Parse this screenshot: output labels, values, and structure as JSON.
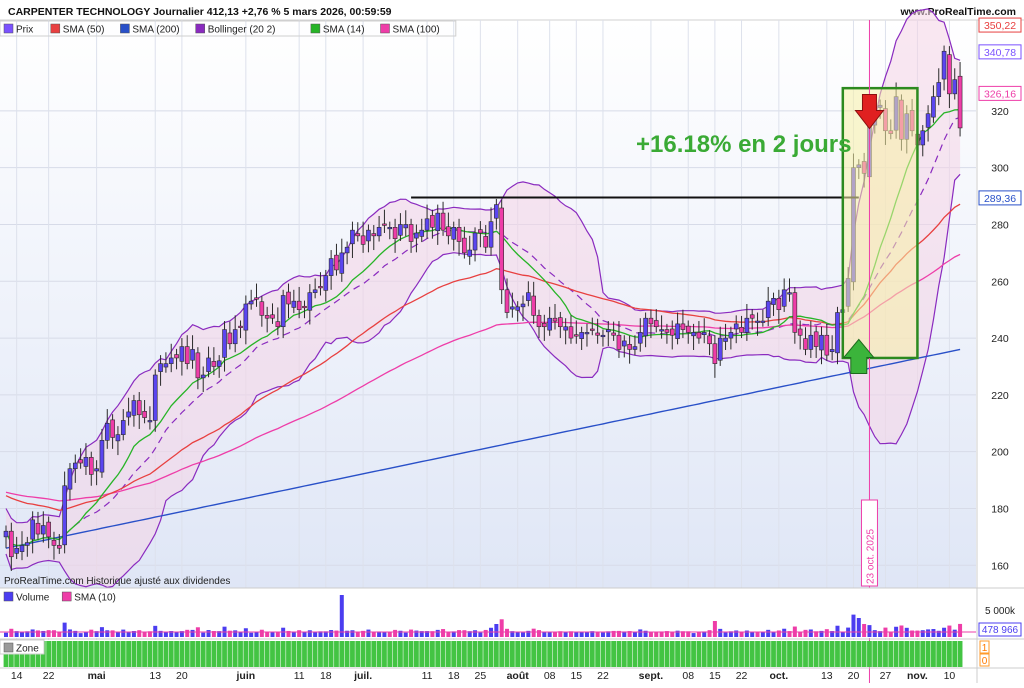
{
  "header": {
    "title": "CARPENTER TECHNOLOGY Journalier 412,13 +2,76 % 5 mars 2026, 00:59:59",
    "watermark": "www.ProRealTime.com"
  },
  "legend": [
    {
      "label": "Prix",
      "color": "#7b52ff"
    },
    {
      "label": "SMA (50)",
      "color": "#e84040"
    },
    {
      "label": "SMA (200)",
      "color": "#2950c8"
    },
    {
      "label": "Bollinger (20 2)",
      "color": "#8a2bbf"
    },
    {
      "label": "SMA (14)",
      "color": "#27b427"
    },
    {
      "label": "SMA (100)",
      "color": "#ee3da8"
    }
  ],
  "source_note": "ProRealTime.com  Historique ajusté aux dividendes",
  "annotation": {
    "text": "+16.18% en 2 jours",
    "color": "#3aaa35"
  },
  "vline_label": "23 oct. 2025",
  "price_tags": [
    {
      "value": "350,22",
      "color": "#e84040"
    },
    {
      "value": "340,78",
      "color": "#7b52ff"
    },
    {
      "value": "326,16",
      "color": "#ee3da8"
    },
    {
      "value": "289,36",
      "color": "#2950c8"
    }
  ],
  "volume_panel": {
    "legend": [
      {
        "label": "Volume",
        "color": "#4b3df0"
      },
      {
        "label": "SMA (10)",
        "color": "#ee3da8"
      }
    ],
    "axis_label": "5 000k",
    "tag": "478 966"
  },
  "zone_panel": {
    "label": "Zone",
    "tick_top": "1",
    "tick_bottom": "0"
  },
  "chart_data": {
    "type": "candlestick",
    "title": "CARPENTER TECHNOLOGY Journalier 412,13 +2,76 % 5 mars 2026, 00:59:59",
    "y_axis": {
      "ylim": [
        152,
        352
      ],
      "ticks": [
        160,
        180,
        200,
        220,
        240,
        260,
        280,
        300,
        320
      ]
    },
    "x_tick_labels": [
      "14",
      "22",
      "mai",
      "13",
      "20",
      "juin",
      "11",
      "18",
      "juil.",
      "11",
      "18",
      "25",
      "août",
      "08",
      "15",
      "22",
      "sept.",
      "08",
      "15",
      "22",
      "oct.",
      "13",
      "20",
      "27",
      "nov.",
      "10"
    ],
    "x_tick_bar_index": [
      2,
      8,
      17,
      28,
      33,
      45,
      55,
      60,
      67,
      79,
      84,
      89,
      96,
      102,
      107,
      112,
      121,
      128,
      133,
      138,
      145,
      154,
      159,
      165,
      171,
      177
    ],
    "close": [
      172,
      163,
      166,
      167,
      168,
      176,
      171,
      174,
      170,
      167,
      166,
      188,
      194,
      196,
      196,
      198,
      192,
      194,
      204,
      210,
      205,
      206,
      211,
      214,
      218,
      213,
      212,
      211,
      227,
      231,
      231,
      233,
      233,
      237,
      231,
      236,
      226,
      227,
      233,
      230,
      232,
      243,
      238,
      243,
      244,
      252,
      253,
      254,
      248,
      247,
      247,
      244,
      255,
      252,
      253,
      250,
      251,
      256,
      257,
      258,
      262,
      268,
      264,
      270,
      272,
      278,
      276,
      273,
      278,
      276,
      279,
      280,
      279,
      275,
      280,
      280,
      274,
      277,
      278,
      282,
      279,
      284,
      278,
      276,
      279,
      274,
      270,
      271,
      277,
      277,
      272,
      281,
      287,
      257,
      249,
      251,
      251,
      252,
      256,
      248,
      244,
      244,
      247,
      246,
      244,
      244,
      240,
      241,
      242,
      242,
      243,
      241,
      241,
      243,
      241,
      236,
      239,
      236,
      237,
      242,
      247,
      245,
      244,
      243,
      242,
      241,
      245,
      243,
      242,
      242,
      240,
      242,
      238,
      231,
      240,
      240,
      242,
      245,
      242,
      247,
      247,
      246,
      246,
      253,
      254,
      250,
      257,
      256,
      242,
      241,
      236,
      241,
      237,
      241,
      234,
      236,
      249,
      250,
      261,
      300,
      301,
      298,
      315,
      320,
      322,
      313,
      312,
      325,
      310,
      319,
      313,
      308,
      313,
      319,
      325,
      330,
      341,
      326,
      331,
      314
    ],
    "volume_avg_k": 478.966,
    "bollinger_upper_start": 190,
    "bollinger_lower_start": 185,
    "sma200_start": 166,
    "sma200_end": 236,
    "events": [
      {
        "label": "23 oct. 2025",
        "note": "+16.18% en 2 jours"
      }
    ]
  }
}
